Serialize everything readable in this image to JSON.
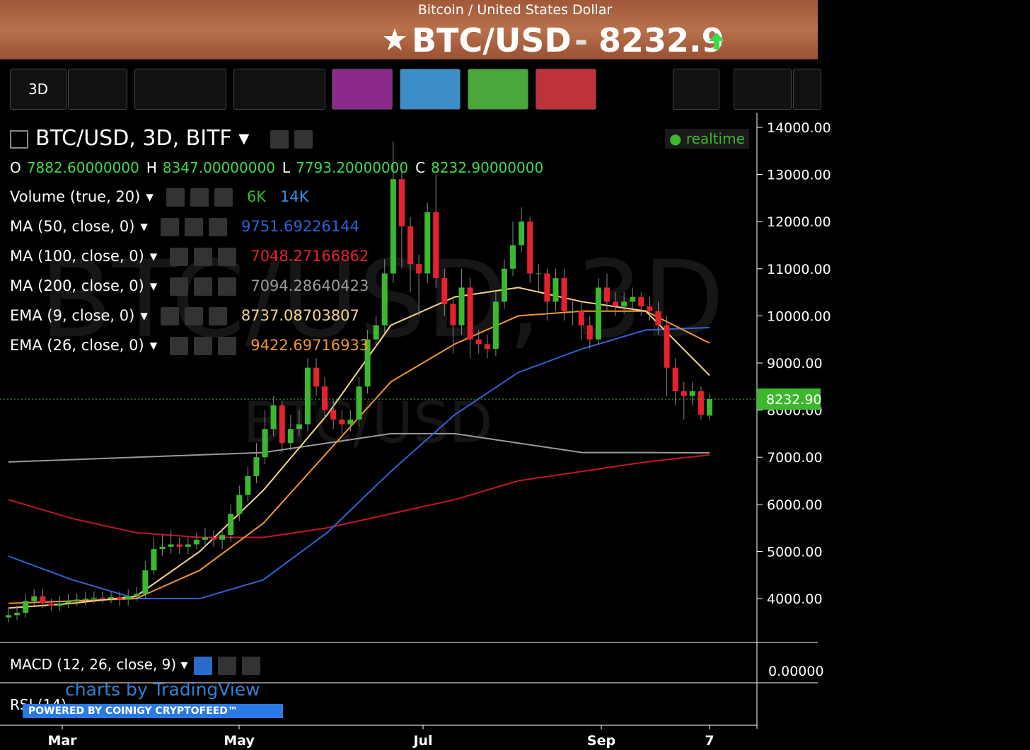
{
  "header": {
    "subtitle": "Bitcoin / United States Dollar",
    "pair": "BTC/USD",
    "separator": "-",
    "price": "8232.9"
  },
  "toolbar": {
    "interval": "3D"
  },
  "chart": {
    "title": "BTC/USD, 3D, BITF",
    "status": "realtime",
    "ohlc": [
      {
        "label": "O",
        "value": "7882.60000000"
      },
      {
        "label": "H",
        "value": "8347.00000000"
      },
      {
        "label": "L",
        "value": "7793.20000000"
      },
      {
        "label": "C",
        "value": "8232.90000000"
      }
    ],
    "indicators": [
      {
        "name": "Volume (true, 20)",
        "values": [
          {
            "text": "6K",
            "color": "#3cb82e"
          },
          {
            "text": "14K",
            "color": "#3a8ee6"
          }
        ]
      },
      {
        "name": "MA (50, close, 0)",
        "values": [
          {
            "text": "9751.69226144",
            "color": "#2f63d6"
          }
        ]
      },
      {
        "name": "MA (100, close, 0)",
        "values": [
          {
            "text": "7048.27166862",
            "color": "#e8212f"
          }
        ]
      },
      {
        "name": "MA (200, close, 0)",
        "values": [
          {
            "text": "7094.28640423",
            "color": "#9a9a9a"
          }
        ]
      },
      {
        "name": "EMA (9, close, 0)",
        "values": [
          {
            "text": "8737.08703807",
            "color": "#f5d58a"
          }
        ]
      },
      {
        "name": "EMA (26, close, 0)",
        "values": [
          {
            "text": "9422.69716933",
            "color": "#f0962e"
          }
        ]
      }
    ],
    "watermark": {
      "big": "BTC/USD, 3D",
      "small": "BTC/USD"
    },
    "price_label": "8232.90",
    "ylim": [
      3070,
      14300
    ],
    "yticks": [
      {
        "value": 14000,
        "label": "14000.00"
      },
      {
        "value": 13000,
        "label": "13000.00"
      },
      {
        "value": 12000,
        "label": "12000.00"
      },
      {
        "value": 11000,
        "label": "11000.00"
      },
      {
        "value": 10000,
        "label": "10000.00"
      },
      {
        "value": 9000,
        "label": "9000.00"
      },
      {
        "value": 8000,
        "label": "8000.00"
      },
      {
        "value": 7000,
        "label": "7000.00"
      },
      {
        "value": 6000,
        "label": "6000.00"
      },
      {
        "value": 5000,
        "label": "5000.00"
      },
      {
        "value": 4000,
        "label": "4000.00"
      }
    ],
    "xlabels": [
      "Mar",
      "May",
      "Jul",
      "Sep",
      "7"
    ],
    "candles": {
      "open": [
        3600,
        3650,
        3700,
        3950,
        4050,
        3900,
        3850,
        3900,
        3950,
        3980,
        4000,
        4020,
        4000,
        4030,
        3980,
        4050,
        4100,
        4600,
        5050,
        5100,
        5150,
        5100,
        5150,
        5250,
        5300,
        5250,
        5350,
        5800,
        6200,
        6600,
        7000,
        7600,
        8100,
        7300,
        7600,
        7700,
        8900,
        8500,
        8000,
        7800,
        7700,
        7800,
        8500,
        9500,
        9800,
        10900,
        12900,
        11900,
        11100,
        10900,
        12200,
        10800,
        10250,
        9800,
        10600,
        9500,
        9400,
        9300,
        10300,
        11000,
        11500,
        12000,
        10900,
        10900,
        10300,
        10800,
        10100,
        10100,
        9800,
        9500,
        10600,
        10300,
        10200,
        10300,
        10400,
        10200,
        10100,
        9800,
        8900,
        8400,
        8300,
        8400,
        7882.6
      ],
      "high": [
        3800,
        3850,
        4100,
        4200,
        4200,
        4000,
        4050,
        4100,
        4100,
        4150,
        4150,
        4150,
        4150,
        4150,
        4200,
        4250,
        4800,
        5300,
        5350,
        5450,
        5300,
        5300,
        5400,
        5500,
        5450,
        5500,
        6000,
        6400,
        6800,
        7300,
        8000,
        8300,
        8200,
        7900,
        8000,
        9100,
        9100,
        8700,
        8200,
        8000,
        8000,
        8700,
        9700,
        10000,
        11200,
        13700,
        13100,
        12100,
        11300,
        12400,
        13000,
        11000,
        10400,
        11000,
        10800,
        9700,
        9600,
        10500,
        11200,
        12000,
        12300,
        12100,
        11100,
        11000,
        11000,
        11000,
        10300,
        10300,
        10000,
        10800,
        10900,
        10500,
        10500,
        10600,
        10500,
        10400,
        10300,
        10000,
        9100,
        8600,
        8600,
        8500,
        8347
      ],
      "low": [
        3500,
        3550,
        3600,
        3850,
        3800,
        3750,
        3750,
        3800,
        3850,
        3850,
        3900,
        3900,
        3900,
        3850,
        3850,
        3950,
        4000,
        4500,
        4900,
        4950,
        4950,
        4950,
        5050,
        5100,
        5100,
        5050,
        5200,
        5650,
        6050,
        6450,
        6850,
        7450,
        7100,
        7150,
        7450,
        7550,
        8300,
        7800,
        7600,
        7500,
        7550,
        7650,
        8350,
        9350,
        9650,
        10700,
        11000,
        10500,
        10000,
        10700,
        10600,
        10000,
        9200,
        9600,
        9100,
        9200,
        9100,
        9150,
        10150,
        10850,
        11350,
        10700,
        10500,
        9900,
        10100,
        9900,
        9800,
        9500,
        9300,
        9400,
        10100,
        10000,
        10050,
        10150,
        10000,
        9900,
        9600,
        8300,
        8100,
        7800,
        8100,
        7800,
        7793.2
      ],
      "close": [
        3650,
        3700,
        3950,
        4050,
        3900,
        3850,
        3900,
        3950,
        3980,
        4000,
        4020,
        4000,
        4030,
        3980,
        4050,
        4100,
        4600,
        5050,
        5100,
        5150,
        5100,
        5150,
        5250,
        5300,
        5250,
        5350,
        5800,
        6200,
        6600,
        7000,
        7600,
        8100,
        7300,
        7600,
        7700,
        8900,
        8500,
        8000,
        7800,
        7700,
        7800,
        8500,
        9500,
        9800,
        10900,
        12900,
        11900,
        11100,
        10900,
        12200,
        10800,
        10250,
        9800,
        10600,
        9500,
        9400,
        9300,
        10300,
        11000,
        11500,
        12000,
        10900,
        10900,
        10300,
        10800,
        10100,
        10100,
        9800,
        9500,
        10600,
        10300,
        10200,
        10300,
        10400,
        10200,
        10100,
        9800,
        8900,
        8400,
        8300,
        8400,
        7900,
        8232.9
      ],
      "up_color": "#3cb82e",
      "down_color": "#e8212f"
    },
    "lines": [
      {
        "color": "#9a9a9a",
        "values": [
          6900,
          6950,
          7000,
          7050,
          7100,
          7300,
          7500,
          7500,
          7300,
          7100,
          7100,
          7094
        ]
      },
      {
        "color": "#c0172a",
        "values": [
          6100,
          5700,
          5400,
          5300,
          5300,
          5500,
          5800,
          6100,
          6500,
          6700,
          6900,
          7048
        ]
      },
      {
        "color": "#2f63d6",
        "values": [
          4900,
          4400,
          4000,
          4000,
          4400,
          5400,
          6700,
          7900,
          8800,
          9300,
          9700,
          9751
        ]
      },
      {
        "color": "#f0962e",
        "values": [
          3900,
          3950,
          4000,
          4600,
          5600,
          7100,
          8600,
          9400,
          10000,
          10100,
          10100,
          9422
        ]
      },
      {
        "color": "#f5d58a",
        "values": [
          3800,
          3900,
          4050,
          5000,
          6300,
          7900,
          9800,
          10400,
          10600,
          10300,
          10100,
          8737
        ]
      }
    ]
  },
  "macd": {
    "name": "MACD (12, 26, close, 9)",
    "tick": "0.00000"
  },
  "rsi": {
    "name": "RSI (14)"
  },
  "branding": {
    "watermark": "charts by TradingView",
    "powered": "POWERED BY COINIGY CRYPTOFEED™"
  }
}
